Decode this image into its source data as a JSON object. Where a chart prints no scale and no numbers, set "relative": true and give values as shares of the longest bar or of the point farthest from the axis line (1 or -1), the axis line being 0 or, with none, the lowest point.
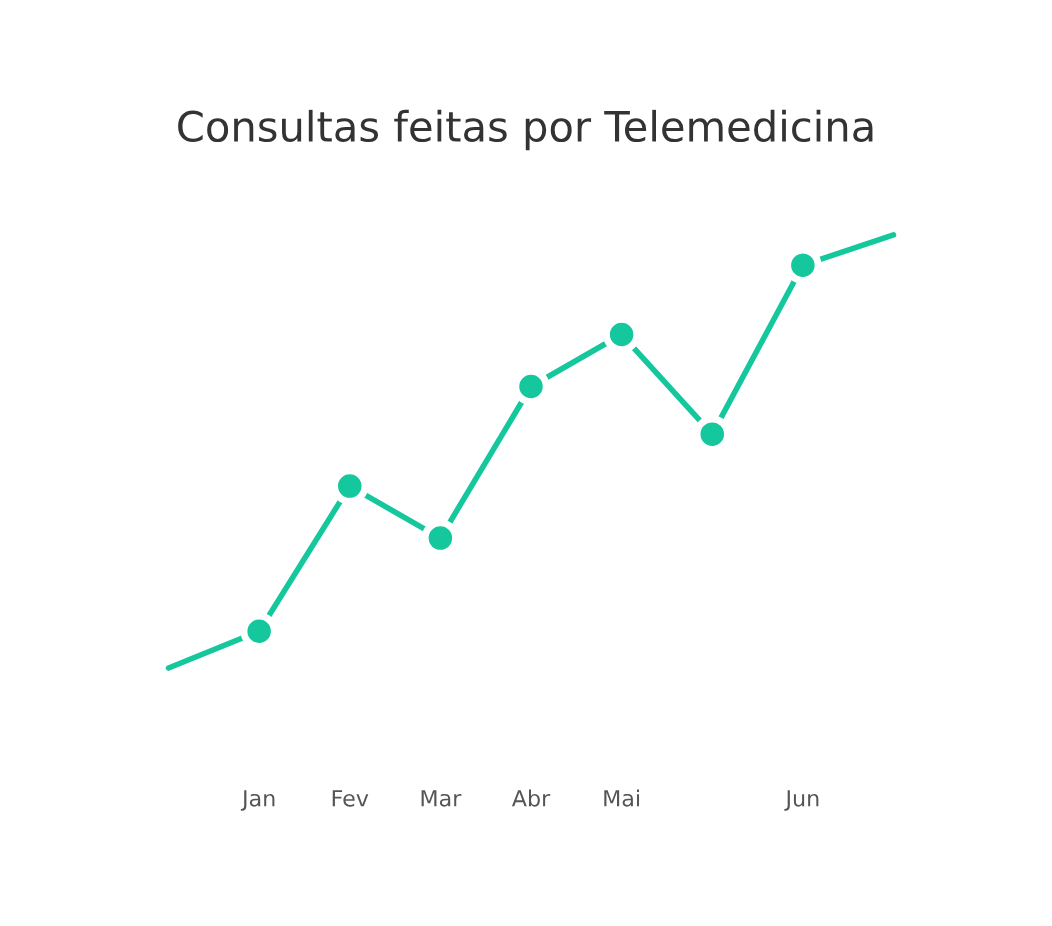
{
  "chart_data": {
    "type": "line",
    "title": "Consultas feitas por Telemedicina",
    "relative": true,
    "categories": [
      null,
      "Jan",
      "Fev",
      "Mar",
      "Abr",
      "Mai",
      null,
      "Jun",
      null
    ],
    "series": [
      {
        "color": "#14c79c",
        "marker": "none",
        "values": [
          0,
          0.085,
          0.42,
          0.3,
          0.65,
          0.77,
          0.54,
          0.93,
          1.0
        ]
      },
      {
        "type": "scatter",
        "color": "#14c79c",
        "marker": "circle",
        "values": [
          null,
          0.085,
          0.42,
          0.3,
          0.65,
          0.77,
          0.54,
          0.93,
          null
        ]
      }
    ]
  }
}
